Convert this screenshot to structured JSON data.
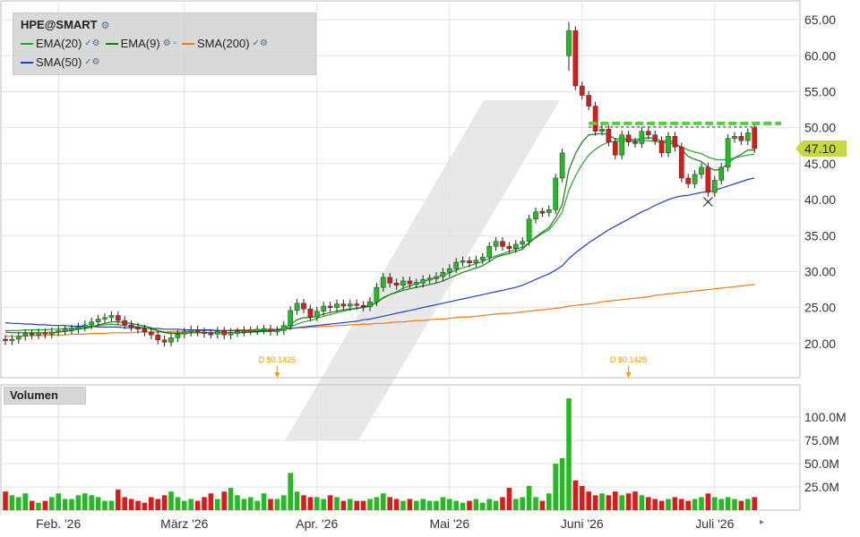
{
  "legend": {
    "ticker": "HPE@SMART",
    "items": [
      {
        "label": "EMA(20)",
        "color": "#2ca02c"
      },
      {
        "label": "EMA(9)",
        "color": "#1a7a1a"
      },
      {
        "label": "SMA(200)",
        "color": "#f07a1a"
      },
      {
        "label": "SMA(50)",
        "color": "#1f3fbf"
      }
    ]
  },
  "volume_label": "Volumen",
  "last_price_label": "47.10",
  "colors": {
    "up": "#22bb22",
    "down": "#dd1a1a",
    "resistance": "#55cc44",
    "price_tag": "#c8d840"
  },
  "chart_data": {
    "type": "candlestick",
    "title": "HPE@SMART",
    "price_axis": {
      "ticks": [
        "65.00",
        "60.00",
        "55.00",
        "50.00",
        "45.00",
        "40.00",
        "35.00",
        "30.00",
        "25.00",
        "20.00"
      ],
      "ylim": [
        16,
        67
      ]
    },
    "volume_axis": {
      "ticks": [
        "100.0M",
        "75.0M",
        "50.0M",
        "25.0M"
      ],
      "ylim": [
        0,
        125
      ]
    },
    "x_labels": [
      "Feb. '26",
      "März '26",
      "Apr. '26",
      "Mai '26",
      "Juni '26",
      "Juli '26"
    ],
    "x_label_index": [
      8,
      27,
      47,
      67,
      87,
      107
    ],
    "dividends": [
      {
        "label": "D $0.1425",
        "index": 41
      },
      {
        "label": "D $0.1425",
        "index": 94
      }
    ],
    "resistance_level": 50.6,
    "last_price": 47.1,
    "closes": [
      20.4,
      20.6,
      21.0,
      21.4,
      21.2,
      21.5,
      21.3,
      21.6,
      21.8,
      21.9,
      22.0,
      22.3,
      22.6,
      23.0,
      23.4,
      23.6,
      23.9,
      23.2,
      22.6,
      22.3,
      22.0,
      21.6,
      21.2,
      20.5,
      20.2,
      20.8,
      21.3,
      21.6,
      21.9,
      21.6,
      21.4,
      21.3,
      21.7,
      21.2,
      21.5,
      21.6,
      21.8,
      21.8,
      21.9,
      22.0,
      21.7,
      21.8,
      22.5,
      24.6,
      25.6,
      24.8,
      23.7,
      24.5,
      25.2,
      25.0,
      25.5,
      25.2,
      25.5,
      25.3,
      25.1,
      25.8,
      27.8,
      29.2,
      28.4,
      28.1,
      28.7,
      28.3,
      28.4,
      28.9,
      29.0,
      29.3,
      29.9,
      30.4,
      31.3,
      31.5,
      31.2,
      31.6,
      32.0,
      33.5,
      34.2,
      33.5,
      33.2,
      33.8,
      34.2,
      37.3,
      38.3,
      38.2,
      38.6,
      43.0,
      46.5,
      63.5,
      55.8,
      54.5,
      53.0,
      49.5,
      49.8,
      48.0,
      46.2,
      49.0,
      48.0,
      47.8,
      49.5,
      49.0,
      48.2,
      46.5,
      48.8,
      47.3,
      43.0,
      42.2,
      43.5,
      44.5,
      41.0,
      42.7,
      44.5,
      48.5,
      48.8,
      48.2,
      49.3,
      47.1
    ],
    "opens": [
      20.6,
      20.4,
      20.6,
      21.0,
      21.4,
      21.2,
      21.5,
      21.3,
      21.6,
      21.8,
      21.9,
      22.0,
      22.3,
      22.6,
      23.0,
      23.4,
      23.6,
      23.9,
      23.2,
      22.6,
      22.3,
      22.0,
      21.6,
      21.2,
      20.5,
      20.2,
      20.8,
      21.3,
      21.6,
      21.9,
      21.6,
      21.4,
      21.3,
      21.7,
      21.2,
      21.5,
      21.6,
      21.8,
      21.8,
      21.9,
      22.0,
      21.7,
      21.8,
      22.5,
      24.6,
      25.6,
      24.8,
      23.7,
      24.5,
      25.2,
      25.0,
      25.5,
      25.2,
      25.5,
      25.3,
      25.1,
      25.8,
      27.8,
      29.2,
      28.4,
      28.1,
      28.7,
      28.3,
      28.4,
      28.9,
      29.0,
      29.3,
      29.9,
      30.4,
      31.3,
      31.5,
      31.2,
      31.6,
      32.0,
      33.5,
      34.2,
      33.5,
      33.2,
      33.8,
      34.2,
      37.3,
      38.3,
      38.2,
      38.6,
      43.0,
      60.0,
      63.5,
      55.8,
      54.5,
      53.0,
      49.5,
      49.8,
      48.0,
      46.2,
      49.0,
      48.0,
      47.8,
      49.5,
      49.0,
      48.2,
      46.5,
      48.8,
      47.3,
      43.0,
      42.2,
      43.5,
      44.5,
      41.0,
      42.7,
      44.5,
      48.5,
      48.8,
      48.2,
      50.0
    ],
    "ema20": [
      21.8,
      21.8,
      21.8,
      21.9,
      21.9,
      21.9,
      21.9,
      22.0,
      22.0,
      22.1,
      22.1,
      22.2,
      22.3,
      22.4,
      22.5,
      22.6,
      22.7,
      22.6,
      22.5,
      22.4,
      22.3,
      22.2,
      22.0,
      21.8,
      21.6,
      21.5,
      21.5,
      21.5,
      21.5,
      21.5,
      21.5,
      21.5,
      21.5,
      21.5,
      21.5,
      21.5,
      21.6,
      21.6,
      21.7,
      21.7,
      21.7,
      21.8,
      21.9,
      22.3,
      22.7,
      23.0,
      23.2,
      23.5,
      23.8,
      24.0,
      24.3,
      24.5,
      24.7,
      24.9,
      25.1,
      25.3,
      25.7,
      26.3,
      26.8,
      27.2,
      27.7,
      28.0,
      28.3,
      28.6,
      28.9,
      29.2,
      29.5,
      29.8,
      30.2,
      30.5,
      30.8,
      31.1,
      31.4,
      31.8,
      32.2,
      32.5,
      32.8,
      33.1,
      33.4,
      34.0,
      34.7,
      35.3,
      35.8,
      36.9,
      38.3,
      41.3,
      43.3,
      44.9,
      46.2,
      47.0,
      47.6,
      48.0,
      48.1,
      48.2,
      48.2,
      48.1,
      48.2,
      48.2,
      48.1,
      47.9,
      47.9,
      47.7,
      47.3,
      46.9,
      46.6,
      46.4,
      45.9,
      45.6,
      45.5,
      45.6,
      45.8,
      46.0,
      46.2,
      46.3
    ],
    "ema9": [
      21.6,
      21.5,
      21.5,
      21.5,
      21.5,
      21.5,
      21.5,
      21.5,
      21.6,
      21.7,
      21.8,
      22.0,
      22.1,
      22.3,
      22.6,
      22.8,
      23.0,
      23.0,
      22.9,
      22.8,
      22.6,
      22.4,
      22.2,
      21.8,
      21.5,
      21.4,
      21.4,
      21.4,
      21.5,
      21.5,
      21.5,
      21.5,
      21.5,
      21.5,
      21.5,
      21.5,
      21.5,
      21.6,
      21.6,
      21.7,
      21.7,
      21.8,
      22.0,
      22.6,
      23.3,
      23.6,
      23.6,
      23.8,
      24.1,
      24.3,
      24.5,
      24.7,
      24.8,
      24.9,
      25.0,
      25.2,
      25.7,
      26.4,
      26.8,
      27.1,
      27.4,
      27.6,
      27.8,
      28.0,
      28.2,
      28.4,
      28.7,
      29.1,
      29.5,
      29.9,
      30.2,
      30.5,
      30.8,
      31.4,
      32.0,
      32.3,
      32.5,
      32.8,
      33.1,
      34.0,
      34.8,
      35.5,
      36.1,
      37.5,
      39.3,
      44.1,
      46.4,
      48.0,
      49.0,
      49.1,
      49.2,
      49.0,
      48.4,
      48.5,
      48.4,
      48.3,
      48.5,
      48.6,
      48.5,
      48.1,
      48.2,
      48.0,
      47.0,
      46.0,
      45.6,
      45.3,
      44.5,
      44.1,
      44.2,
      45.1,
      45.8,
      46.3,
      46.9,
      46.9
    ],
    "sma50": [
      22.9,
      22.8,
      22.8,
      22.7,
      22.7,
      22.6,
      22.6,
      22.5,
      22.5,
      22.5,
      22.4,
      22.4,
      22.4,
      22.4,
      22.3,
      22.3,
      22.3,
      22.3,
      22.2,
      22.2,
      22.2,
      22.1,
      22.1,
      22.1,
      22.0,
      22.0,
      22.0,
      21.9,
      21.9,
      21.9,
      21.9,
      21.9,
      21.8,
      21.8,
      21.8,
      21.8,
      21.8,
      21.8,
      21.8,
      21.8,
      21.8,
      21.9,
      22.0,
      22.1,
      22.2,
      22.3,
      22.4,
      22.5,
      22.6,
      22.7,
      22.8,
      22.9,
      23.0,
      23.1,
      23.3,
      23.4,
      23.6,
      23.8,
      24.0,
      24.2,
      24.4,
      24.6,
      24.8,
      25.0,
      25.2,
      25.4,
      25.6,
      25.8,
      26.0,
      26.2,
      26.4,
      26.6,
      26.8,
      27.0,
      27.2,
      27.4,
      27.6,
      27.8,
      28.1,
      28.5,
      28.9,
      29.3,
      29.7,
      30.2,
      30.8,
      31.8,
      32.6,
      33.3,
      34.0,
      34.6,
      35.2,
      35.8,
      36.3,
      36.8,
      37.3,
      37.8,
      38.3,
      38.7,
      39.2,
      39.6,
      40.0,
      40.3,
      40.5,
      40.6,
      40.8,
      41.0,
      41.1,
      41.3,
      41.6,
      41.9,
      42.2,
      42.5,
      42.8,
      43.0
    ],
    "sma200": [
      21.0,
      21.0,
      21.0,
      21.1,
      21.1,
      21.1,
      21.1,
      21.2,
      21.2,
      21.2,
      21.3,
      21.3,
      21.3,
      21.4,
      21.4,
      21.4,
      21.5,
      21.5,
      21.5,
      21.5,
      21.6,
      21.6,
      21.6,
      21.6,
      21.6,
      21.7,
      21.7,
      21.7,
      21.7,
      21.7,
      21.8,
      21.8,
      21.8,
      21.8,
      21.8,
      21.9,
      21.9,
      21.9,
      21.9,
      22.0,
      22.0,
      22.0,
      22.1,
      22.1,
      22.2,
      22.2,
      22.3,
      22.3,
      22.4,
      22.4,
      22.5,
      22.5,
      22.6,
      22.6,
      22.7,
      22.7,
      22.8,
      22.8,
      22.9,
      23.0,
      23.0,
      23.1,
      23.2,
      23.2,
      23.3,
      23.4,
      23.4,
      23.5,
      23.6,
      23.7,
      23.7,
      23.8,
      23.9,
      24.0,
      24.1,
      24.2,
      24.2,
      24.3,
      24.4,
      24.5,
      24.6,
      24.7,
      24.8,
      24.9,
      25.0,
      25.2,
      25.3,
      25.4,
      25.5,
      25.6,
      25.8,
      25.9,
      26.0,
      26.1,
      26.2,
      26.3,
      26.4,
      26.5,
      26.7,
      26.8,
      26.9,
      27.0,
      27.1,
      27.2,
      27.3,
      27.4,
      27.5,
      27.6,
      27.7,
      27.8,
      27.9,
      28.0,
      28.1,
      28.2
    ],
    "volume": [
      20,
      16,
      14,
      18,
      10,
      8,
      10,
      14,
      18,
      12,
      12,
      16,
      18,
      16,
      14,
      10,
      10,
      22,
      14,
      12,
      10,
      8,
      14,
      12,
      16,
      20,
      14,
      10,
      12,
      10,
      14,
      18,
      12,
      20,
      24,
      16,
      12,
      14,
      10,
      18,
      12,
      12,
      16,
      40,
      20,
      16,
      14,
      14,
      12,
      16,
      14,
      10,
      12,
      10,
      10,
      12,
      14,
      18,
      14,
      12,
      10,
      12,
      10,
      12,
      10,
      10,
      14,
      12,
      10,
      8,
      10,
      12,
      8,
      12,
      10,
      14,
      24,
      12,
      14,
      26,
      14,
      10,
      18,
      50,
      56,
      120,
      32,
      26,
      20,
      16,
      18,
      16,
      20,
      16,
      18,
      20,
      16,
      14,
      12,
      10,
      12,
      14,
      12,
      10,
      12,
      14,
      18,
      14,
      12,
      14,
      12,
      10,
      12,
      14
    ]
  }
}
